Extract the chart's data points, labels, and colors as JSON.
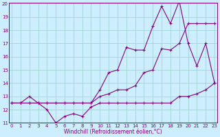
{
  "xlabel": "Windchill (Refroidissement éolien,°C)",
  "x": [
    0,
    1,
    2,
    3,
    4,
    5,
    6,
    7,
    8,
    9,
    10,
    11,
    12,
    13,
    14,
    15,
    16,
    17,
    18,
    19,
    20,
    21,
    22,
    23
  ],
  "line1": [
    12.5,
    12.5,
    13.0,
    12.5,
    12.0,
    11.0,
    11.5,
    11.7,
    11.5,
    12.2,
    12.5,
    12.5,
    12.5,
    12.5,
    12.5,
    12.5,
    12.5,
    12.5,
    12.5,
    13.0,
    13.0,
    13.2,
    13.5,
    14.0
  ],
  "line2": [
    12.5,
    12.5,
    12.5,
    12.5,
    12.5,
    12.5,
    12.5,
    12.5,
    12.5,
    12.5,
    13.0,
    13.2,
    13.5,
    13.5,
    13.8,
    14.8,
    15.0,
    16.6,
    16.5,
    17.0,
    18.5,
    18.5,
    18.5,
    18.5
  ],
  "line3": [
    12.5,
    12.5,
    12.5,
    12.5,
    12.5,
    12.5,
    12.5,
    12.5,
    12.5,
    12.5,
    13.5,
    14.8,
    15.0,
    16.7,
    16.5,
    16.5,
    18.3,
    19.8,
    18.5,
    20.2,
    17.0,
    15.3,
    17.0,
    14.0
  ],
  "ylim_min": 11,
  "ylim_max": 20,
  "xlim_min": 0,
  "xlim_max": 23,
  "yticks": [
    11,
    12,
    13,
    14,
    15,
    16,
    17,
    18,
    19,
    20
  ],
  "xticks": [
    0,
    1,
    2,
    3,
    4,
    5,
    6,
    7,
    8,
    9,
    10,
    11,
    12,
    13,
    14,
    15,
    16,
    17,
    18,
    19,
    20,
    21,
    22,
    23
  ],
  "line_color": "#800080",
  "bg_color": "#cceeff",
  "grid_color": "#99cccc",
  "marker": "+",
  "markersize": 3,
  "linewidth": 0.8,
  "tick_fontsize": 5,
  "xlabel_fontsize": 5.5
}
